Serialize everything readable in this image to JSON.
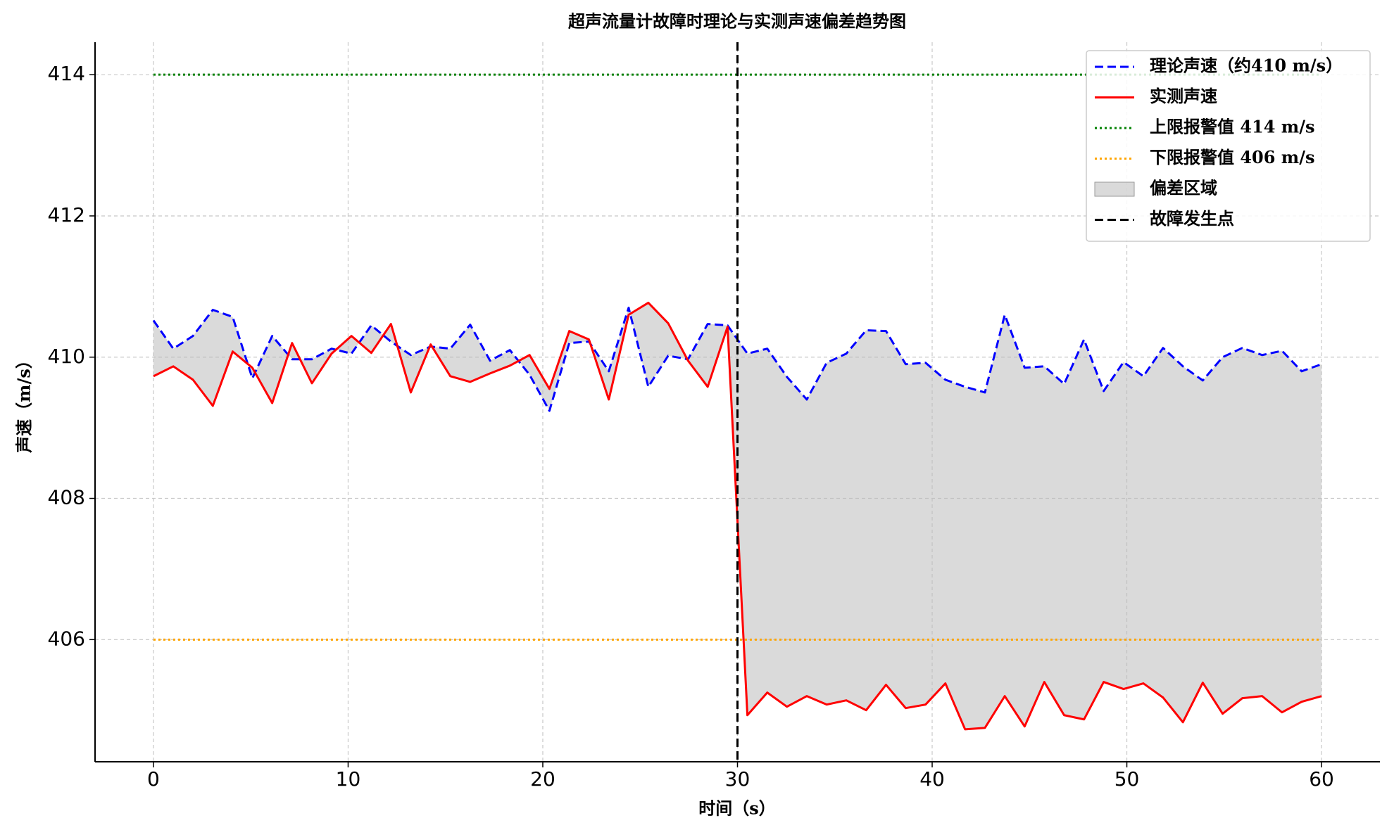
{
  "chart_data": {
    "type": "line",
    "title": "超声流量计故障时理论与实测声速偏差趋势图",
    "x_label": "时间（s）",
    "y_label": "声速（m/s）",
    "x": [
      0,
      1.02,
      2.03,
      3.05,
      4.07,
      5.08,
      6.1,
      7.12,
      8.14,
      9.15,
      10.17,
      11.19,
      12.2,
      13.22,
      14.24,
      15.25,
      16.27,
      17.29,
      18.31,
      19.32,
      20.34,
      21.36,
      22.37,
      23.39,
      24.41,
      25.42,
      26.44,
      27.46,
      28.47,
      29.49,
      30.51,
      31.53,
      32.54,
      33.56,
      34.58,
      35.59,
      36.61,
      37.63,
      38.64,
      39.66,
      40.68,
      41.69,
      42.71,
      43.73,
      44.75,
      45.76,
      46.78,
      47.8,
      48.81,
      49.83,
      50.85,
      51.86,
      52.88,
      53.9,
      54.92,
      55.93,
      56.95,
      57.97,
      58.98,
      60
    ],
    "series": [
      {
        "name": "理论声速（约410 m/s）",
        "color": "#0000ff",
        "linestyle": "dashed",
        "values": [
          410.52,
          410.12,
          410.3,
          410.67,
          410.57,
          409.7,
          410.3,
          409.97,
          409.97,
          410.12,
          410.05,
          410.45,
          410.22,
          410.03,
          410.15,
          410.12,
          410.46,
          409.95,
          410.1,
          409.75,
          409.24,
          410.2,
          410.22,
          409.8,
          410.7,
          409.58,
          410.02,
          409.97,
          410.47,
          410.45,
          410.05,
          410.12,
          409.72,
          409.4,
          409.92,
          410.05,
          410.38,
          410.37,
          409.9,
          409.92,
          409.68,
          409.58,
          409.5,
          410.6,
          409.85,
          409.87,
          409.62,
          410.25,
          409.52,
          409.93,
          409.73,
          410.13,
          409.87,
          409.67,
          410.0,
          410.13,
          410.03,
          410.09,
          409.8,
          409.9
        ]
      },
      {
        "name": "实测声速",
        "color": "#ff0000",
        "linestyle": "solid",
        "values": [
          409.73,
          409.87,
          409.68,
          409.31,
          410.08,
          409.85,
          409.35,
          410.2,
          409.63,
          410.05,
          410.3,
          410.06,
          410.47,
          409.5,
          410.18,
          409.73,
          409.65,
          409.77,
          409.88,
          410.03,
          409.55,
          410.37,
          410.25,
          409.4,
          410.6,
          410.77,
          410.48,
          409.95,
          409.58,
          410.43,
          404.93,
          405.25,
          405.05,
          405.2,
          405.08,
          405.14,
          405.0,
          405.36,
          405.03,
          405.08,
          405.38,
          404.73,
          404.75,
          405.2,
          404.77,
          405.4,
          404.93,
          404.87,
          405.4,
          405.3,
          405.38,
          405.18,
          404.83,
          405.39,
          404.95,
          405.17,
          405.2,
          404.97,
          405.12,
          405.2
        ]
      }
    ],
    "hlines": [
      {
        "name": "上限报警值 414 m/s",
        "value": 414,
        "color": "#008000"
      },
      {
        "name": "下限报警值 406 m/s",
        "value": 406,
        "color": "#ffa500"
      }
    ],
    "fill": {
      "name": "偏差区域",
      "color": "#bbbbbb"
    },
    "vline": {
      "name": "故障发生点",
      "value": 30,
      "color": "#000000"
    },
    "xlim": [
      -3,
      63
    ],
    "ylim": [
      404.27,
      414.46
    ],
    "xticks": [
      0,
      10,
      20,
      30,
      40,
      50,
      60
    ],
    "yticks": [
      406,
      408,
      410,
      412,
      414
    ],
    "grid": true,
    "legend": "upper right"
  }
}
